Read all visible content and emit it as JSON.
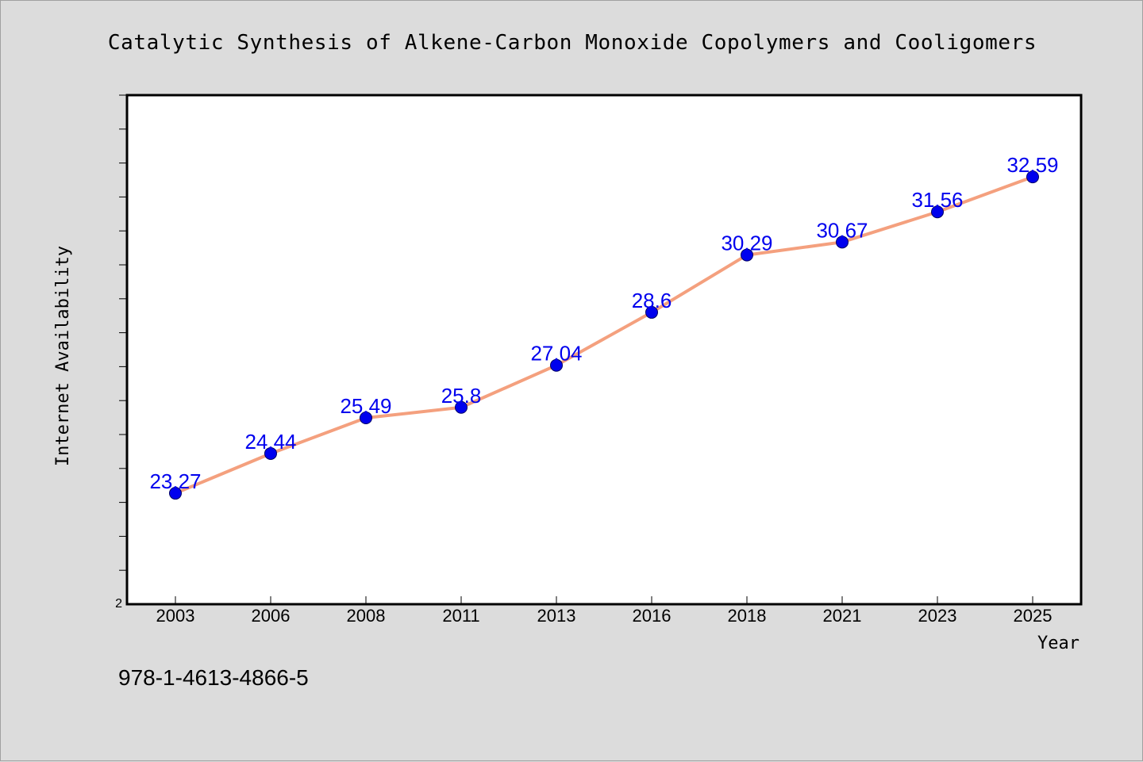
{
  "title": "Catalytic Synthesis of Alkene-Carbon Monoxide Copolymers and Cooligomers",
  "footer_text": "978-1-4613-4866-5",
  "colors": {
    "background": "#dcdcdc",
    "plot_background": "#ffffff",
    "line": "#f4a07e",
    "marker": "#0000ee",
    "data_label": "#0000ee"
  },
  "chart_data": {
    "type": "line",
    "title": "Catalytic Synthesis of Alkene-Carbon Monoxide Copolymers and Cooligomers",
    "xlabel": "Year",
    "ylabel": "Internet Availability",
    "categories": [
      "2003",
      "2006",
      "2008",
      "2011",
      "2013",
      "2016",
      "2018",
      "2021",
      "2023",
      "2025"
    ],
    "values": [
      23.27,
      24.44,
      25.49,
      25.8,
      27.04,
      28.6,
      30.29,
      30.67,
      31.56,
      32.59
    ],
    "data_labels": [
      "23.27",
      "24.44",
      "25.49",
      "25.8",
      "27.04",
      "28.6",
      "30.29",
      "30.67",
      "31.56",
      "32.59"
    ],
    "ylim": [
      20,
      35
    ],
    "y_min_label": "2",
    "y_minor_ticks": 15,
    "grid": false,
    "legend": "none"
  }
}
